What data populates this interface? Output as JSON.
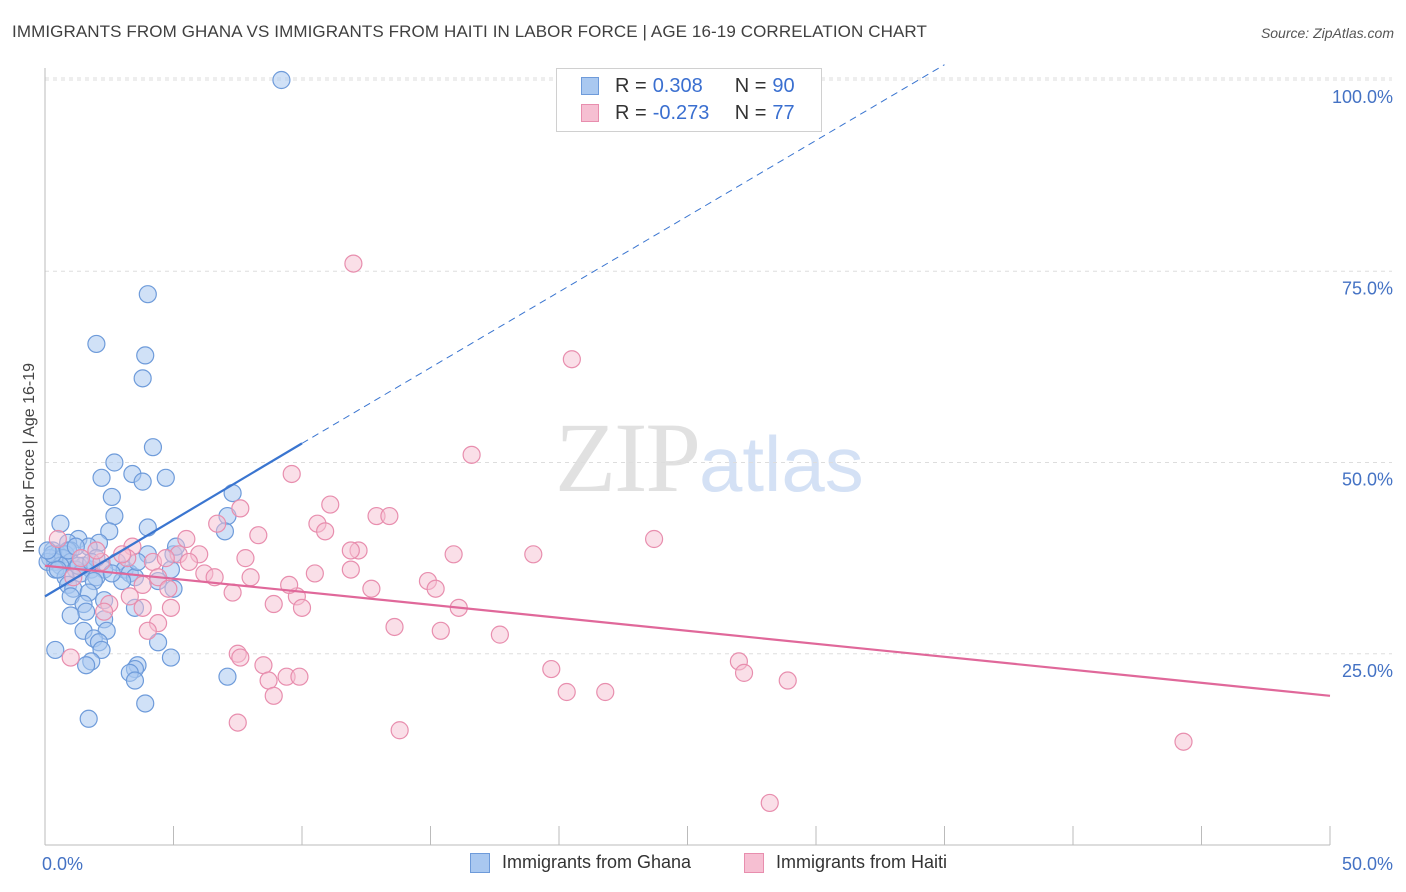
{
  "title": "IMMIGRANTS FROM GHANA VS IMMIGRANTS FROM HAITI IN LABOR FORCE | AGE 16-19 CORRELATION CHART",
  "source": "Source: ZipAtlas.com",
  "watermark": {
    "zip": "ZIP",
    "atlas": "atlas"
  },
  "legend": {
    "rows": [
      {
        "r_label": "R = ",
        "r_value": "0.308",
        "n_label": "N = ",
        "n_value": "90"
      },
      {
        "r_label": "R = ",
        "r_value": "-0.273",
        "n_label": "N = ",
        "n_value": "77"
      }
    ]
  },
  "colors": {
    "ghana_fill": "#A9C8F0",
    "ghana_stroke": "#6E9BDA",
    "ghana_line": "#3A75D0",
    "haiti_fill": "#F6BFD2",
    "haiti_stroke": "#E88EAE",
    "haiti_line": "#E0689A",
    "grid": "#DDDDDD",
    "axis_text": "#4472C4"
  },
  "chart_data": {
    "type": "scatter",
    "title": "IMMIGRANTS FROM GHANA VS IMMIGRANTS FROM HAITI IN LABOR FORCE | AGE 16-19 CORRELATION CHART",
    "xlabel": "",
    "ylabel": "In Labor Force | Age 16-19",
    "xlim": [
      0,
      50
    ],
    "ylim": [
      0,
      102
    ],
    "x_tick_labels": {
      "left": "0.0%",
      "right": "50.0%"
    },
    "y_ticks": [
      {
        "value": 100,
        "label": "100.0%"
      },
      {
        "value": 75,
        "label": "75.0%"
      },
      {
        "value": 50,
        "label": "50.0%"
      },
      {
        "value": 25,
        "label": "25.0%"
      }
    ],
    "series": [
      {
        "name": "Immigrants from Ghana",
        "trend": {
          "x0": 0,
          "y0": 32.5,
          "x1": 10,
          "y1": 52.5,
          "dashed_x1": 35,
          "dashed_y1": 102
        },
        "points": [
          [
            9.2,
            100
          ],
          [
            4.0,
            72
          ],
          [
            2.0,
            65.5
          ],
          [
            3.9,
            64
          ],
          [
            3.8,
            61
          ],
          [
            4.2,
            52
          ],
          [
            2.7,
            50
          ],
          [
            3.4,
            48.5
          ],
          [
            2.2,
            48
          ],
          [
            3.8,
            47.5
          ],
          [
            4.7,
            48
          ],
          [
            2.6,
            45.5
          ],
          [
            7.3,
            46
          ],
          [
            0.6,
            42
          ],
          [
            2.7,
            43
          ],
          [
            7.1,
            43
          ],
          [
            4.0,
            41.5
          ],
          [
            2.5,
            41
          ],
          [
            7.0,
            41
          ],
          [
            1.3,
            40
          ],
          [
            0.9,
            39.5
          ],
          [
            2.1,
            39.5
          ],
          [
            1.7,
            39
          ],
          [
            1.0,
            38.5
          ],
          [
            0.3,
            38.5
          ],
          [
            0.5,
            38
          ],
          [
            0.8,
            38
          ],
          [
            0.2,
            37.5
          ],
          [
            0.7,
            37.5
          ],
          [
            0.4,
            37
          ],
          [
            1.0,
            37
          ],
          [
            0.1,
            37
          ],
          [
            2.8,
            37
          ],
          [
            0.6,
            36.5
          ],
          [
            1.5,
            36.5
          ],
          [
            0.4,
            36
          ],
          [
            1.8,
            36
          ],
          [
            1.2,
            36
          ],
          [
            3.1,
            36
          ],
          [
            2.3,
            36
          ],
          [
            4.9,
            36
          ],
          [
            3.3,
            35.5
          ],
          [
            1.4,
            35.5
          ],
          [
            0.8,
            35
          ],
          [
            2.0,
            35
          ],
          [
            3.5,
            35
          ],
          [
            1.9,
            34.5
          ],
          [
            3.0,
            34.5
          ],
          [
            0.9,
            34
          ],
          [
            5.0,
            33.5
          ],
          [
            1.1,
            33.5
          ],
          [
            1.7,
            33
          ],
          [
            1.0,
            32.5
          ],
          [
            2.3,
            32
          ],
          [
            1.5,
            31.5
          ],
          [
            1.6,
            30.5
          ],
          [
            3.5,
            31
          ],
          [
            1.0,
            30
          ],
          [
            2.3,
            29.5
          ],
          [
            4.4,
            34.5
          ],
          [
            5.0,
            38
          ],
          [
            5.1,
            39
          ],
          [
            4.0,
            38
          ],
          [
            1.5,
            28
          ],
          [
            2.4,
            28
          ],
          [
            1.9,
            27
          ],
          [
            2.1,
            26.5
          ],
          [
            4.4,
            26.5
          ],
          [
            0.4,
            25.5
          ],
          [
            2.2,
            25.5
          ],
          [
            4.9,
            24.5
          ],
          [
            1.8,
            24
          ],
          [
            1.6,
            23.5
          ],
          [
            3.6,
            23.5
          ],
          [
            3.5,
            23
          ],
          [
            3.3,
            22.5
          ],
          [
            7.1,
            22
          ],
          [
            3.5,
            21.5
          ],
          [
            3.9,
            18.5
          ],
          [
            1.7,
            16.5
          ],
          [
            0.3,
            38
          ],
          [
            0.9,
            38.5
          ],
          [
            1.2,
            39
          ],
          [
            2.0,
            37.5
          ],
          [
            2.6,
            35.5
          ],
          [
            1.3,
            36.5
          ],
          [
            0.5,
            36
          ],
          [
            3.6,
            37
          ],
          [
            0.1,
            38.5
          ],
          [
            1.8,
            37
          ]
        ]
      },
      {
        "name": "Immigrants from Haiti",
        "trend": {
          "x0": 0,
          "y0": 36.5,
          "x1": 50,
          "y1": 19.5
        },
        "points": [
          [
            12.0,
            76
          ],
          [
            20.5,
            63.5
          ],
          [
            16.6,
            51
          ],
          [
            9.6,
            48.5
          ],
          [
            11.1,
            44.5
          ],
          [
            7.6,
            44
          ],
          [
            12.9,
            43
          ],
          [
            13.4,
            43
          ],
          [
            10.6,
            42
          ],
          [
            6.7,
            42
          ],
          [
            10.9,
            41
          ],
          [
            8.3,
            40.5
          ],
          [
            23.7,
            40
          ],
          [
            5.5,
            40
          ],
          [
            0.5,
            40
          ],
          [
            3.4,
            39
          ],
          [
            12.2,
            38.5
          ],
          [
            11.9,
            38.5
          ],
          [
            5.2,
            38
          ],
          [
            6.0,
            38
          ],
          [
            15.9,
            38
          ],
          [
            19.0,
            38
          ],
          [
            7.8,
            37.5
          ],
          [
            3.2,
            37.5
          ],
          [
            1.4,
            37.5
          ],
          [
            2.2,
            37
          ],
          [
            5.6,
            37
          ],
          [
            4.2,
            37
          ],
          [
            11.9,
            36
          ],
          [
            10.5,
            35.5
          ],
          [
            6.2,
            35.5
          ],
          [
            6.6,
            35
          ],
          [
            8.0,
            35
          ],
          [
            4.4,
            35
          ],
          [
            14.9,
            34.5
          ],
          [
            15.2,
            33.5
          ],
          [
            12.7,
            33.5
          ],
          [
            7.3,
            33
          ],
          [
            4.8,
            33.5
          ],
          [
            3.3,
            32.5
          ],
          [
            9.8,
            32.5
          ],
          [
            2.5,
            31.5
          ],
          [
            3.8,
            31
          ],
          [
            4.9,
            31
          ],
          [
            8.9,
            31.5
          ],
          [
            10.0,
            31
          ],
          [
            16.1,
            31
          ],
          [
            2.3,
            30.5
          ],
          [
            4.4,
            29
          ],
          [
            13.6,
            28.5
          ],
          [
            15.4,
            28
          ],
          [
            4.0,
            28
          ],
          [
            17.7,
            27.5
          ],
          [
            7.5,
            25
          ],
          [
            1.0,
            24.5
          ],
          [
            7.6,
            24.5
          ],
          [
            27.0,
            24
          ],
          [
            27.2,
            22.5
          ],
          [
            19.7,
            23
          ],
          [
            8.5,
            23.5
          ],
          [
            28.9,
            21.5
          ],
          [
            8.7,
            21.5
          ],
          [
            9.4,
            22
          ],
          [
            9.9,
            22
          ],
          [
            20.3,
            20
          ],
          [
            21.8,
            20
          ],
          [
            8.9,
            19.5
          ],
          [
            7.5,
            16
          ],
          [
            13.8,
            15
          ],
          [
            44.3,
            13.5
          ],
          [
            28.2,
            5.5
          ],
          [
            3.8,
            34
          ],
          [
            4.7,
            37.5
          ],
          [
            2.0,
            38.5
          ],
          [
            1.1,
            35
          ],
          [
            9.5,
            34
          ],
          [
            3.0,
            38
          ]
        ]
      }
    ]
  }
}
